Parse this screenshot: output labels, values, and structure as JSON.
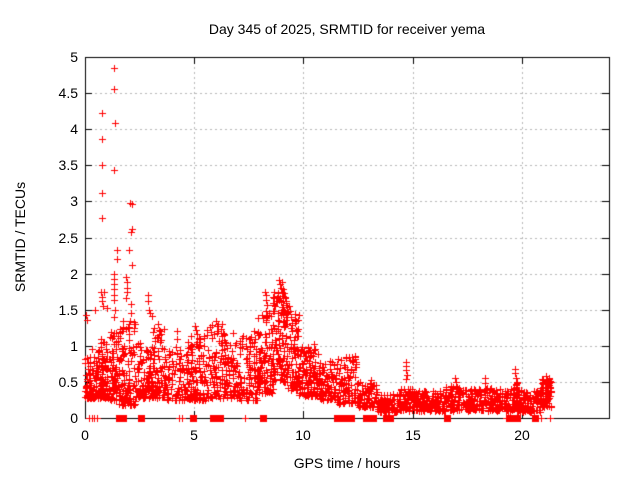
{
  "chart_data": {
    "type": "scatter",
    "title": "Day 345 of 2025, SRMTID for receiver yema",
    "xlabel": "GPS time / hours",
    "ylabel": "SRMTID / TECUs",
    "xlim": [
      0,
      24
    ],
    "ylim": [
      0,
      5
    ],
    "grid": true,
    "legend": "none",
    "marker": "plus",
    "colors": {
      "background": "#ffffff",
      "axis": "#000000",
      "grid": "#b8b8b8",
      "marker": "#ff0000",
      "text": "#000000"
    },
    "xticks": {
      "values": [
        0,
        5,
        10,
        15,
        20
      ],
      "labels": [
        "0",
        "5",
        "10",
        "15",
        "20"
      ]
    },
    "yticks": {
      "values": [
        0,
        0.5,
        1,
        1.5,
        2,
        2.5,
        3,
        3.5,
        4,
        4.5,
        5
      ],
      "labels": [
        "0",
        "0.5",
        "1",
        "1.5",
        "2",
        "2.5",
        "3",
        "3.5",
        "4",
        "4.5",
        "5"
      ]
    },
    "spike_points": [
      [
        0.05,
        1.42
      ],
      [
        0.1,
        1.36
      ],
      [
        0.3,
        0.95
      ],
      [
        0.46,
        1.5
      ],
      [
        0.76,
        4.22
      ],
      [
        0.76,
        3.86
      ],
      [
        0.78,
        3.5
      ],
      [
        0.78,
        3.12
      ],
      [
        0.78,
        2.77
      ],
      [
        0.74,
        1.75
      ],
      [
        0.76,
        1.68
      ],
      [
        0.8,
        1.62
      ],
      [
        0.82,
        1.55
      ],
      [
        0.88,
        1.75
      ],
      [
        0.99,
        1.52
      ],
      [
        1.35,
        4.85
      ],
      [
        1.35,
        4.56
      ],
      [
        1.37,
        4.08
      ],
      [
        1.34,
        3.44
      ],
      [
        1.45,
        2.33
      ],
      [
        1.45,
        2.2
      ],
      [
        1.33,
        2.0
      ],
      [
        1.34,
        1.93
      ],
      [
        1.33,
        1.85
      ],
      [
        1.35,
        1.78
      ],
      [
        1.34,
        1.71
      ],
      [
        1.33,
        1.63
      ],
      [
        1.36,
        1.5
      ],
      [
        1.34,
        1.4
      ],
      [
        2.05,
        2.98
      ],
      [
        2.15,
        2.96
      ],
      [
        2.14,
        2.62
      ],
      [
        2.1,
        2.57
      ],
      [
        2.03,
        2.33
      ],
      [
        2.14,
        2.12
      ],
      [
        1.9,
        1.95
      ],
      [
        1.92,
        1.88
      ],
      [
        1.91,
        1.8
      ],
      [
        1.93,
        1.74
      ],
      [
        1.9,
        1.66
      ],
      [
        2.09,
        1.58
      ],
      [
        2.1,
        1.45
      ],
      [
        2.88,
        1.7
      ],
      [
        2.9,
        1.62
      ],
      [
        2.92,
        1.5
      ],
      [
        2.98,
        1.46
      ],
      [
        3.05,
        1.41
      ],
      [
        3.35,
        1.3
      ],
      [
        3.38,
        1.22
      ],
      [
        3.4,
        1.15
      ],
      [
        4.2,
        1.21
      ],
      [
        4.22,
        1.1
      ],
      [
        4.18,
        0.98
      ],
      [
        5.05,
        1.28
      ],
      [
        5.1,
        1.22
      ],
      [
        5.15,
        1.17
      ],
      [
        5.2,
        1.1
      ],
      [
        5.12,
        1.05
      ],
      [
        5.18,
        0.98
      ],
      [
        6.0,
        1.35
      ],
      [
        6.05,
        1.28
      ],
      [
        6.1,
        1.2
      ],
      [
        6.8,
        1.18
      ],
      [
        7.75,
        1.2
      ],
      [
        7.78,
        1.1
      ],
      [
        7.72,
        1.0
      ],
      [
        8.25,
        1.75
      ],
      [
        8.28,
        1.7
      ],
      [
        8.3,
        1.64
      ],
      [
        8.33,
        1.57
      ],
      [
        8.27,
        1.48
      ],
      [
        8.35,
        1.41
      ],
      [
        8.9,
        1.91
      ],
      [
        8.95,
        1.85
      ],
      [
        9.02,
        1.88
      ],
      [
        8.97,
        1.8
      ],
      [
        9.05,
        1.78
      ],
      [
        9.1,
        1.73
      ],
      [
        9.15,
        1.68
      ],
      [
        9.2,
        1.62
      ],
      [
        8.75,
        1.62
      ],
      [
        8.7,
        1.55
      ],
      [
        8.65,
        1.48
      ],
      [
        9.35,
        1.55
      ],
      [
        9.4,
        1.48
      ],
      [
        9.45,
        1.4
      ],
      [
        10.5,
        1.02
      ],
      [
        10.55,
        0.95
      ],
      [
        10.45,
        0.9
      ],
      [
        11.95,
        0.84
      ],
      [
        12.35,
        0.86
      ],
      [
        12.4,
        0.78
      ],
      [
        13.05,
        0.48
      ],
      [
        13.15,
        0.44
      ],
      [
        14.68,
        0.78
      ],
      [
        14.7,
        0.72
      ],
      [
        14.72,
        0.66
      ],
      [
        14.74,
        0.6
      ],
      [
        14.7,
        0.54
      ],
      [
        16.95,
        0.55
      ],
      [
        17.0,
        0.5
      ],
      [
        18.3,
        0.55
      ],
      [
        18.33,
        0.49
      ],
      [
        19.68,
        0.68
      ],
      [
        19.7,
        0.62
      ],
      [
        19.72,
        0.55
      ],
      [
        21.1,
        0.58
      ],
      [
        21.18,
        0.53
      ],
      [
        21.25,
        0.48
      ]
    ],
    "clusters": [
      [
        0.0,
        0.6,
        0.28,
        0.85,
        95,
        1.8
      ],
      [
        0.6,
        1.1,
        0.28,
        1.1,
        95,
        1.8
      ],
      [
        1.1,
        1.55,
        0.25,
        1.2,
        70,
        1.8
      ],
      [
        1.55,
        2.3,
        0.18,
        1.35,
        110,
        1.9
      ],
      [
        2.3,
        3.1,
        0.28,
        1.05,
        90,
        1.8
      ],
      [
        3.1,
        3.7,
        0.28,
        1.25,
        75,
        1.8
      ],
      [
        3.7,
        4.7,
        0.25,
        0.95,
        85,
        1.8
      ],
      [
        4.7,
        5.5,
        0.25,
        1.15,
        100,
        1.8
      ],
      [
        5.5,
        6.4,
        0.28,
        1.3,
        95,
        1.8
      ],
      [
        6.4,
        7.1,
        0.28,
        1.05,
        75,
        1.8
      ],
      [
        7.1,
        7.9,
        0.25,
        1.15,
        85,
        1.8
      ],
      [
        7.9,
        8.6,
        0.35,
        1.5,
        100,
        1.5
      ],
      [
        8.6,
        9.3,
        0.5,
        1.75,
        120,
        1.2
      ],
      [
        9.3,
        9.8,
        0.38,
        1.45,
        70,
        1.5
      ],
      [
        9.8,
        10.7,
        0.3,
        1.0,
        110,
        1.6
      ],
      [
        10.7,
        11.5,
        0.25,
        0.8,
        85,
        1.7
      ],
      [
        11.5,
        12.5,
        0.2,
        0.85,
        95,
        1.7
      ],
      [
        12.5,
        13.4,
        0.15,
        0.55,
        75,
        1.6
      ],
      [
        13.4,
        14.4,
        0.08,
        0.35,
        95,
        1.4
      ],
      [
        14.4,
        15.1,
        0.1,
        0.42,
        85,
        1.5
      ],
      [
        15.1,
        16.5,
        0.1,
        0.38,
        130,
        1.4
      ],
      [
        16.5,
        17.2,
        0.1,
        0.45,
        70,
        1.5
      ],
      [
        17.2,
        18.6,
        0.1,
        0.42,
        120,
        1.4
      ],
      [
        18.6,
        19.5,
        0.1,
        0.4,
        85,
        1.4
      ],
      [
        19.5,
        20.0,
        0.1,
        0.5,
        60,
        1.5
      ],
      [
        20.0,
        20.9,
        0.08,
        0.38,
        85,
        1.4
      ],
      [
        20.9,
        21.35,
        0.15,
        0.55,
        65,
        1.3
      ]
    ],
    "zero_squares": [
      1.55,
      1.73,
      2.55,
      4.95,
      5.85,
      6.2,
      8.15,
      11.55,
      11.85,
      12.2,
      12.85,
      13.2,
      13.8,
      13.95,
      16.6,
      19.45,
      19.8,
      20.6
    ],
    "zero_plus_ticks": [
      0.2,
      0.3,
      0.42,
      0.55,
      4.3,
      4.45,
      7.35,
      19.3,
      19.38,
      20.9,
      21.3
    ]
  }
}
